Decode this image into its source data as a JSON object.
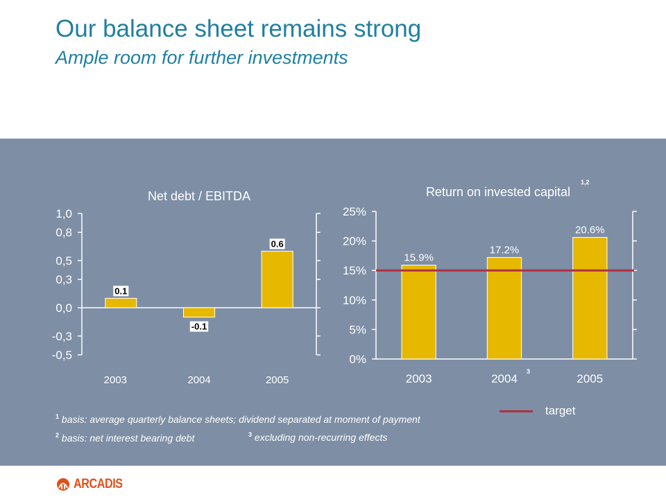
{
  "header": {
    "title": "Our balance sheet remains strong",
    "subtitle": "Ample room for further investments"
  },
  "chart_data": [
    {
      "type": "bar",
      "title": "Net debt / EBITDA",
      "categories": [
        "2003",
        "2004",
        "2005"
      ],
      "values": [
        0.1,
        -0.1,
        0.6
      ],
      "data_labels": [
        "0.1",
        "-0.1",
        "0.6"
      ],
      "ylim": [
        -0.5,
        1.0
      ],
      "yticks": [
        -0.5,
        -0.3,
        0.0,
        0.3,
        0.5,
        0.8,
        1.0
      ],
      "ytick_labels": [
        "-0,5",
        "-0,3",
        "0,0",
        "0,3",
        "0,5",
        "0,8",
        "1,0"
      ],
      "bar_color": "#e6b800",
      "grid": false
    },
    {
      "type": "bar",
      "title": "Return on invested capital",
      "title_superscript": "1,2",
      "categories": [
        "2003",
        "2004",
        "2005"
      ],
      "category_superscripts": [
        "",
        "3",
        ""
      ],
      "values": [
        15.9,
        17.2,
        20.6
      ],
      "data_labels": [
        "15.9%",
        "17.2%",
        "20.6%"
      ],
      "ylim": [
        0,
        25
      ],
      "yticks": [
        0,
        5,
        10,
        15,
        20,
        25
      ],
      "ytick_labels": [
        "0%",
        "5%",
        "10%",
        "15%",
        "20%",
        "25%"
      ],
      "target": 15,
      "target_color": "#b03040",
      "bar_color": "#e6b800",
      "grid": false
    }
  ],
  "legend": {
    "target_label": "target"
  },
  "footnotes": [
    {
      "mark": "1",
      "text": "basis: average quarterly balance sheets; dividend separated at moment of payment"
    },
    {
      "mark": "2",
      "text": "basis: net interest bearing debt"
    },
    {
      "mark": "3",
      "text": "excluding non-recurring effects"
    }
  ],
  "logo": {
    "text": "ARCADIS",
    "icon": "arcadis-logo-icon"
  }
}
